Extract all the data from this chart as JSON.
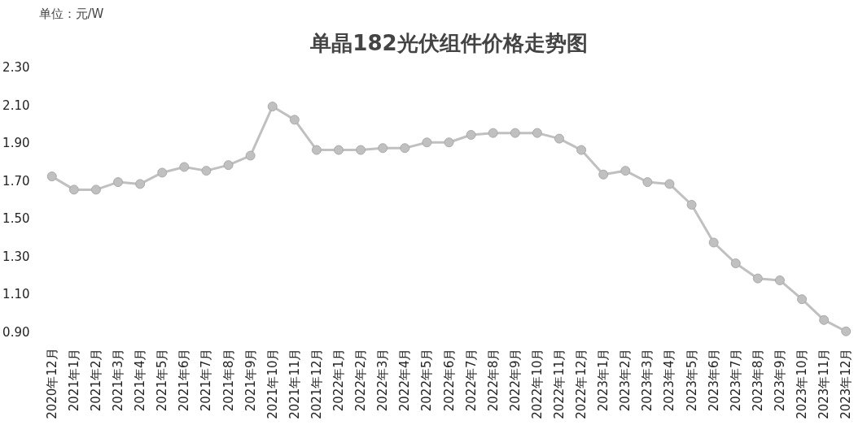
{
  "chart_data": {
    "type": "line",
    "title": "单晶182光伏组件价格走势图",
    "ylabel": "单位：元/W",
    "categories": [
      "2020年12月",
      "2021年1月",
      "2021年2月",
      "2021年3月",
      "2021年4月",
      "2021年5月",
      "2021年6月",
      "2021年7月",
      "2021年8月",
      "2021年9月",
      "2021年10月",
      "2021年11月",
      "2021年12月",
      "2022年1月",
      "2022年2月",
      "2022年3月",
      "2022年4月",
      "2022年5月",
      "2022年6月",
      "2022年7月",
      "2022年8月",
      "2022年9月",
      "2022年10月",
      "2022年11月",
      "2022年12月",
      "2023年1月",
      "2023年2月",
      "2023年3月",
      "2023年4月",
      "2023年5月",
      "2023年6月",
      "2023年7月",
      "2023年8月",
      "2023年9月",
      "2023年10月",
      "2023年11月",
      "2023年12月"
    ],
    "series": [
      {
        "color": "#c0c0c0",
        "values": [
          1.72,
          1.65,
          1.65,
          1.69,
          1.68,
          1.74,
          1.77,
          1.75,
          1.78,
          1.83,
          2.09,
          2.02,
          1.86,
          1.86,
          1.86,
          1.87,
          1.87,
          1.9,
          1.9,
          1.94,
          1.95,
          1.95,
          1.95,
          1.92,
          1.86,
          1.73,
          1.75,
          1.69,
          1.68,
          1.57,
          1.37,
          1.26,
          1.18,
          1.17,
          1.07,
          0.96,
          0.9
        ]
      }
    ],
    "ylim": [
      0.9,
      2.3
    ],
    "yticks": [
      {
        "value": 0.9,
        "label": "0.90"
      },
      {
        "value": 1.1,
        "label": "1.10"
      },
      {
        "value": 1.3,
        "label": "1.30"
      },
      {
        "value": 1.5,
        "label": "1.50"
      },
      {
        "value": 1.7,
        "label": "1.70"
      },
      {
        "value": 1.9,
        "label": "1.90"
      },
      {
        "value": 2.1,
        "label": "2.10"
      },
      {
        "value": 2.3,
        "label": "2.30"
      }
    ],
    "grid": false,
    "marker": "circle",
    "line_style": "solid"
  }
}
